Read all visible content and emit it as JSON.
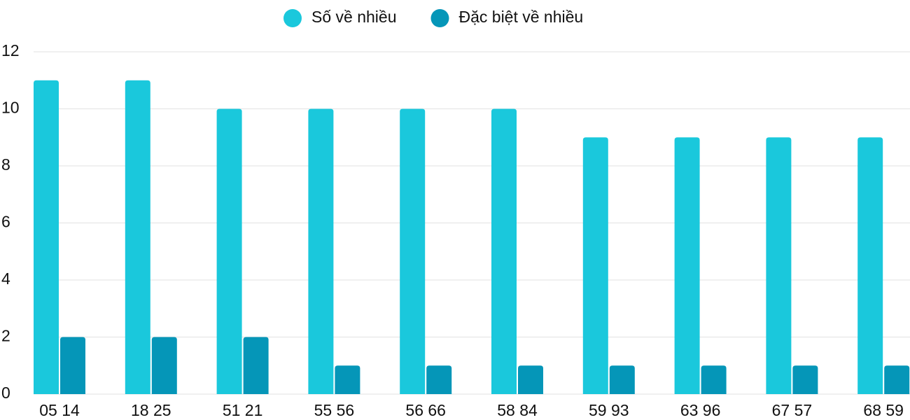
{
  "chart_data": {
    "type": "bar",
    "categories": [
      "05 14",
      "18 25",
      "51 21",
      "55 56",
      "56 66",
      "58 84",
      "59 93",
      "63 96",
      "67 57",
      "68 59"
    ],
    "series": [
      {
        "name": "Số về nhiều",
        "color": "#1ac8dc",
        "values": [
          11,
          11,
          10,
          10,
          10,
          10,
          9,
          9,
          9,
          9
        ]
      },
      {
        "name": "Đặc biệt về nhiều",
        "color": "#0596b8",
        "values": [
          2,
          2,
          2,
          1,
          1,
          1,
          1,
          1,
          1,
          1
        ]
      }
    ],
    "ylim": [
      0,
      12
    ],
    "yticks": [
      0,
      2,
      4,
      6,
      8,
      10,
      12
    ],
    "grid": true,
    "legend": "top"
  }
}
